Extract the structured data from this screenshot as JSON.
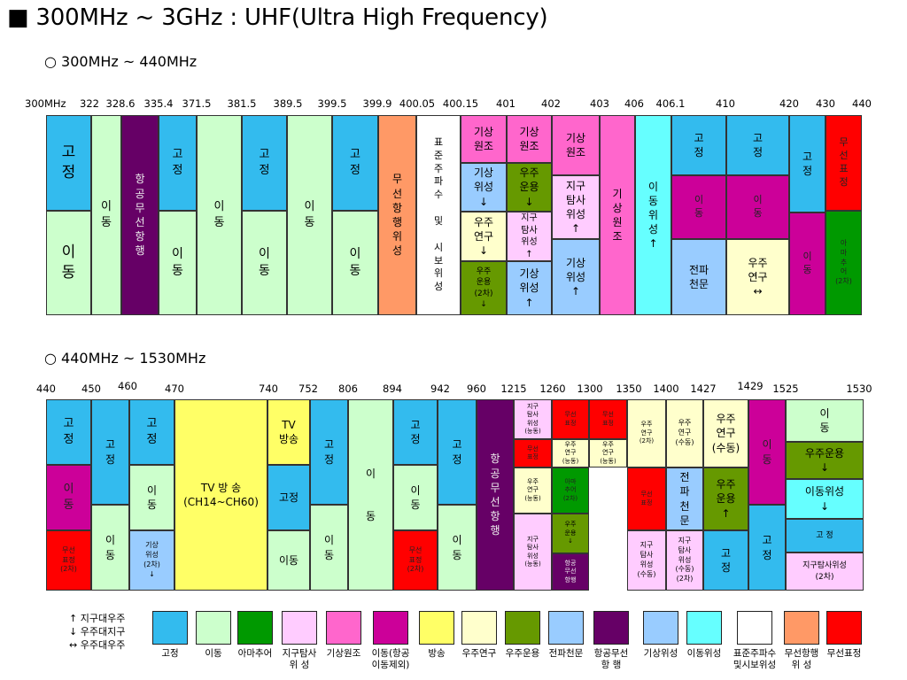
{
  "title": "■ 300MHz ~ 3GHz : UHF(Ultra High Frequency)",
  "chart_data": [
    {
      "type": "table",
      "subtitle": "○ 300MHz ~ 440MHz",
      "ticks": [
        "300MHz",
        "322",
        "328.6",
        "335.4",
        "371.5",
        "381.5",
        "389.5",
        "399.5",
        "399.9",
        "400.05",
        "400.15",
        "401",
        "402",
        "403",
        "406",
        "406.1",
        "410",
        "420",
        "430",
        "440"
      ],
      "cells": [
        {
          "text": "고\n정",
          "color": "#33bbee"
        },
        {
          "text": "이\n동",
          "color": "#ccffcc"
        },
        {
          "text": "이\n동",
          "color": "#ccffcc"
        },
        {
          "text": "항\n공\n무\n선\n항\n행",
          "color": "#660066"
        },
        {
          "text": "고\n정",
          "color": "#33bbee"
        },
        {
          "text": "이\n동",
          "color": "#ccffcc"
        },
        {
          "text": "이\n동",
          "color": "#ccffcc"
        },
        {
          "text": "고\n정",
          "color": "#33bbee"
        },
        {
          "text": "이\n동",
          "color": "#ccffcc"
        },
        {
          "text": "이\n동",
          "color": "#ccffcc"
        },
        {
          "text": "고\n정",
          "color": "#33bbee"
        },
        {
          "text": "이\n동",
          "color": "#ccffcc"
        },
        {
          "text": "무\n선\n항\n행\n위\n성",
          "color": "#ff9966"
        },
        {
          "text": "표\n준\n주\n파\n수\n \n및\n \n시\n보\n위\n성",
          "color": "#ffffff"
        },
        {
          "text": "기상\n원조",
          "color": "#ff66cc"
        },
        {
          "text": "기상\n위성\n↓",
          "color": "#99ccff"
        },
        {
          "text": "우주\n연구\n↓",
          "color": "#ffffcc"
        },
        {
          "text": "우주\n운용\n(2차)\n↓",
          "color": "#669900"
        },
        {
          "text": "기상\n원조",
          "color": "#ff66cc"
        },
        {
          "text": "우주\n운용\n↓",
          "color": "#669900"
        },
        {
          "text": "지구\n탐사\n위성\n↑",
          "color": "#ffccff"
        },
        {
          "text": "기상\n위성\n↑",
          "color": "#99ccff"
        },
        {
          "text": "기상\n원조",
          "color": "#ff66cc"
        },
        {
          "text": "지구\n탐사\n위성\n↑",
          "color": "#ffccff"
        },
        {
          "text": "기상\n위성\n↑",
          "color": "#99ccff"
        },
        {
          "text": "기\n상\n원\n조",
          "color": "#ff66cc"
        },
        {
          "text": "이\n동\n위\n성\n↑",
          "color": "#66ffff"
        },
        {
          "text": "고\n정",
          "color": "#33bbee"
        },
        {
          "text": "이\n동",
          "color": "#cc0099"
        },
        {
          "text": "전파\n천문",
          "color": "#99ccff"
        },
        {
          "text": "고\n정",
          "color": "#33bbee"
        },
        {
          "text": "이\n동",
          "color": "#cc0099"
        },
        {
          "text": "우주\n연구\n↔",
          "color": "#ffffcc"
        },
        {
          "text": "고\n정",
          "color": "#33bbee"
        },
        {
          "text": "이\n동",
          "color": "#cc0099"
        },
        {
          "text": "무\n선\n표\n정",
          "color": "#ff0000"
        },
        {
          "text": "아\n마\n추\n어\n(2차)",
          "color": "#009900"
        }
      ]
    },
    {
      "type": "table",
      "subtitle": "○ 440MHz ~ 1530MHz",
      "ticks": [
        "440",
        "450",
        "460",
        "470",
        "740",
        "752",
        "806",
        "894",
        "942",
        "960",
        "1215",
        "1260",
        "1300",
        "1350",
        "1400",
        "1427",
        "1429",
        "1525",
        "1530"
      ],
      "cells": [
        {
          "text": "고\n정",
          "color": "#33bbee"
        },
        {
          "text": "이\n동",
          "color": "#cc0099"
        },
        {
          "text": "무선\n표정\n(2차)",
          "color": "#ff0000"
        },
        {
          "text": "고\n정",
          "color": "#33bbee"
        },
        {
          "text": "이\n동",
          "color": "#ccffcc"
        },
        {
          "text": "고\n정",
          "color": "#33bbee"
        },
        {
          "text": "이\n동",
          "color": "#ccffcc"
        },
        {
          "text": "기상\n위성\n(2차)\n↓",
          "color": "#99ccff"
        },
        {
          "text": "TV 방  송\n(CH14~CH60)",
          "color": "#ffff66"
        },
        {
          "text": "TV\n방송",
          "color": "#ffff66"
        },
        {
          "text": "고정",
          "color": "#33bbee"
        },
        {
          "text": "이동",
          "color": "#ccffcc"
        },
        {
          "text": "고\n정",
          "color": "#33bbee"
        },
        {
          "text": "이\n동",
          "color": "#ccffcc"
        },
        {
          "text": "이\n \n \n동",
          "color": "#ccffcc"
        },
        {
          "text": "고\n정",
          "color": "#33bbee"
        },
        {
          "text": "이\n동",
          "color": "#ccffcc"
        },
        {
          "text": "무선\n표정\n(2차)",
          "color": "#ff0000"
        },
        {
          "text": "고\n정",
          "color": "#33bbee"
        },
        {
          "text": "이\n동",
          "color": "#ccffcc"
        },
        {
          "text": "항\n공\n무\n선\n항\n행",
          "color": "#660066"
        },
        {
          "text": "지구\n탐사\n위성\n(능동)",
          "color": "#ffccff"
        },
        {
          "text": "무선\n표정",
          "color": "#ff0000"
        },
        {
          "text": "우주\n연구\n(능동)",
          "color": "#ffffcc"
        },
        {
          "text": "지구\n탐사\n위성\n(능동)",
          "color": "#ffccff"
        },
        {
          "text": "무선\n표정",
          "color": "#ff0000"
        },
        {
          "text": "우주\n연구\n(능동)",
          "color": "#ffffcc"
        },
        {
          "text": "아마\n추어\n(2차)",
          "color": "#009900"
        },
        {
          "text": "우주\n운용\n↓",
          "color": "#669900"
        },
        {
          "text": "항공\n무선\n항행",
          "color": "#660066"
        },
        {
          "text": "무선\n표정",
          "color": "#ff0000"
        },
        {
          "text": "우주\n연구\n(능동)",
          "color": "#ffffcc"
        },
        {
          "text": "우주\n연구\n(2차)",
          "color": "#ffffcc"
        },
        {
          "text": "무선\n표정",
          "color": "#ff0000"
        },
        {
          "text": "지구\n탐사\n위성\n(수동)",
          "color": "#ffccff"
        },
        {
          "text": "우주\n연구\n(수동)",
          "color": "#ffffcc"
        },
        {
          "text": "전\n파\n천\n문",
          "color": "#99ccff"
        },
        {
          "text": "지구\n탐사\n위성\n(수동)\n(2차)",
          "color": "#ffccff"
        },
        {
          "text": "우주\n연구\n(수동)",
          "color": "#ffffcc"
        },
        {
          "text": "우주\n운용\n↑",
          "color": "#669900"
        },
        {
          "text": "고\n정",
          "color": "#33bbee"
        },
        {
          "text": "이\n동",
          "color": "#cc0099"
        },
        {
          "text": "고\n정",
          "color": "#33bbee"
        },
        {
          "text": "이\n동",
          "color": "#ccffcc"
        },
        {
          "text": "우주운용\n↓",
          "color": "#669900"
        },
        {
          "text": "이동위성\n↓",
          "color": "#66ffff"
        },
        {
          "text": "고    정",
          "color": "#33bbee"
        },
        {
          "text": "지구탐사위성\n(2차)",
          "color": "#ffccff"
        },
        {
          "text": "이  동\n(2차)",
          "color": "#ccffcc"
        }
      ]
    }
  ],
  "legend": {
    "arrows": [
      "↑   지구대우주",
      "↓   우주대지구",
      "↔  우주대우주"
    ],
    "items": [
      {
        "label": "고정",
        "color": "#33bbee"
      },
      {
        "label": "이동",
        "color": "#ccffcc"
      },
      {
        "label": "아마추어",
        "color": "#009900"
      },
      {
        "label": "지구탐사\n위    성",
        "color": "#ffccff"
      },
      {
        "label": "기상원조",
        "color": "#ff66cc"
      },
      {
        "label": "이동(항공\n이동제외)",
        "color": "#cc0099"
      },
      {
        "label": "방송",
        "color": "#ffff66"
      },
      {
        "label": "우주연구",
        "color": "#ffffcc"
      },
      {
        "label": "우주운용",
        "color": "#669900"
      },
      {
        "label": "전파천문",
        "color": "#99ccff"
      },
      {
        "label": "항공무선\n항    행",
        "color": "#660066"
      },
      {
        "label": "기상위성",
        "color": "#99ccff"
      },
      {
        "label": "이동위성",
        "color": "#66ffff"
      },
      {
        "label": "표준주파수\n및시보위성",
        "color": "#ffffff"
      },
      {
        "label": "무선항행\n위    성",
        "color": "#ff9966"
      },
      {
        "label": "무선표정",
        "color": "#ff0000"
      }
    ]
  }
}
